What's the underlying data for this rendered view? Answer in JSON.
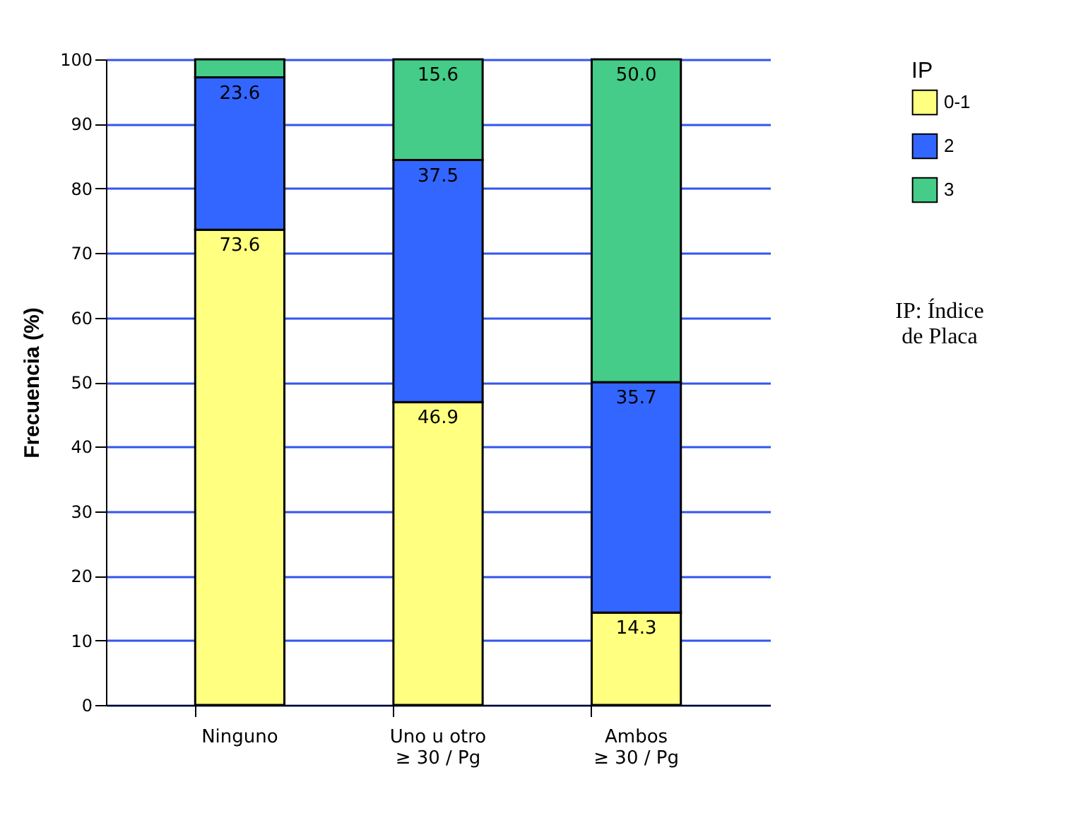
{
  "chart_data": {
    "type": "bar",
    "stacked": true,
    "ylabel": "Frecuencia (%)",
    "legend_title": "IP",
    "legend": "right",
    "grid": true,
    "categories": [
      "Ninguno",
      "Uno u otro\n≥ 30 / Pg",
      "Ambos\n≥ 30 / Pg"
    ],
    "series": [
      {
        "name": "0-1",
        "color": "#ffff80",
        "values": [
          73.6,
          46.9,
          14.3
        ],
        "value_labels": [
          "73.6",
          "46.9",
          "14.3"
        ]
      },
      {
        "name": "2",
        "color": "#3366ff",
        "values": [
          23.6,
          37.5,
          35.7
        ],
        "value_labels": [
          "23.6",
          "37.5",
          "35.7"
        ]
      },
      {
        "name": "3",
        "color": "#44cc88",
        "values": [
          2.8,
          15.6,
          50.0
        ],
        "value_labels": [
          null,
          "15.6",
          "50.0"
        ]
      }
    ],
    "ylim": [
      0,
      100
    ],
    "yticks": [
      0,
      10,
      20,
      30,
      40,
      50,
      60,
      70,
      80,
      90,
      100
    ],
    "annotations": [
      "IP: Índice\nde Placa"
    ]
  }
}
